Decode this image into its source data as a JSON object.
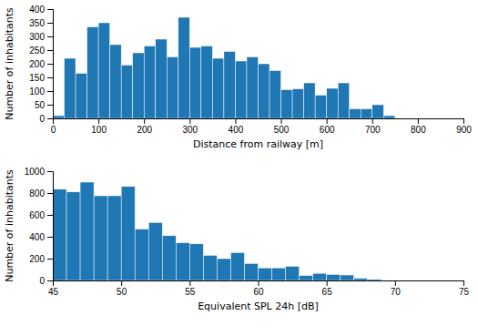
{
  "chart_data": [
    {
      "type": "histogram",
      "xlabel": "Distance from railway [m]",
      "ylabel": "Number of inhabitants",
      "bins": [
        0,
        25,
        50,
        75,
        100,
        125,
        150,
        175,
        200,
        225,
        250,
        275,
        300,
        325,
        350,
        375,
        400,
        425,
        450,
        475,
        500,
        525,
        550,
        575,
        600,
        625,
        650,
        675,
        700,
        725,
        750,
        775,
        800
      ],
      "values": [
        10,
        220,
        165,
        335,
        350,
        270,
        195,
        240,
        265,
        290,
        225,
        370,
        260,
        265,
        220,
        245,
        210,
        225,
        200,
        175,
        105,
        108,
        130,
        85,
        110,
        130,
        35,
        35,
        50,
        10,
        0,
        0
      ],
      "xlim": [
        0,
        900
      ],
      "ylim": [
        0,
        400
      ],
      "xticks": [
        0,
        100,
        200,
        300,
        400,
        500,
        600,
        700,
        800,
        900
      ],
      "yticks": [
        0,
        50,
        100,
        150,
        200,
        250,
        300,
        350,
        400
      ],
      "grid": false
    },
    {
      "type": "histogram",
      "xlabel": "Equivalent SPL 24h [dB]",
      "ylabel": "Number of inhabitants",
      "bins": [
        45,
        46,
        47,
        48,
        49,
        50,
        51,
        52,
        53,
        54,
        55,
        56,
        57,
        58,
        59,
        60,
        61,
        62,
        63,
        64,
        65,
        66,
        67,
        68,
        69,
        70,
        71,
        72,
        73,
        74,
        75
      ],
      "values": [
        835,
        810,
        900,
        775,
        775,
        860,
        470,
        530,
        410,
        345,
        335,
        230,
        200,
        255,
        155,
        115,
        115,
        130,
        45,
        65,
        55,
        50,
        20,
        10,
        0,
        0,
        0,
        0,
        0,
        0
      ],
      "xlim": [
        45,
        75
      ],
      "ylim": [
        0,
        1000
      ],
      "xticks": [
        45,
        50,
        55,
        60,
        65,
        70,
        75
      ],
      "yticks": [
        0,
        200,
        400,
        600,
        800,
        1000
      ],
      "grid": false
    }
  ]
}
